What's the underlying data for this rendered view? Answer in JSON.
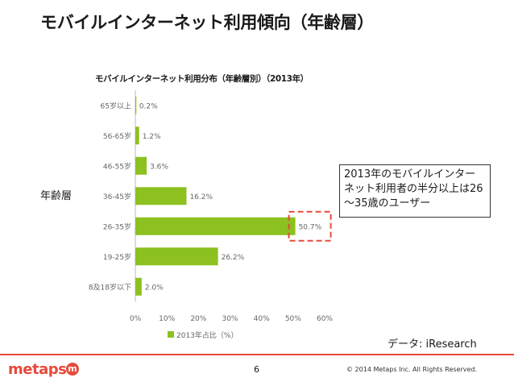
{
  "slide": {
    "title": "モバイルインターネット利用傾向（年齢層）",
    "side_label": "年齢層",
    "callout": "2013年のモバイルインターネット利用者の半分以上は26～35歳のユーザー",
    "source": "データ: iResearch",
    "page_number": "6",
    "copyright": "© 2014 Metaps Inc. All Rights Reserved.",
    "logo_text": "metaps",
    "logo_mark": "m"
  },
  "colors": {
    "bar": "#8cc11f",
    "highlight": "#e64a3b",
    "brand": "#e64a3b"
  },
  "chart_data": {
    "type": "bar",
    "orientation": "horizontal",
    "title": "モバイルインターネット利用分布（年齢層別）（2013年）",
    "categories": [
      "65岁以上",
      "56-65岁",
      "46-55岁",
      "36-45岁",
      "26-35岁",
      "19-25岁",
      "8及18岁以下"
    ],
    "values": [
      0.2,
      1.2,
      3.6,
      16.2,
      50.7,
      26.2,
      2.0
    ],
    "value_labels": [
      "0.2%",
      "1.2%",
      "3.6%",
      "16.2%",
      "50.7%",
      "26.2%",
      "2.0%"
    ],
    "x_ticks": [
      "0%",
      "10%",
      "20%",
      "30%",
      "40%",
      "50%",
      "60%"
    ],
    "xlim": [
      0,
      60
    ],
    "legend": "2013年占比（%）",
    "legend_position": "bottom",
    "highlight_index": 4,
    "grid": false
  }
}
